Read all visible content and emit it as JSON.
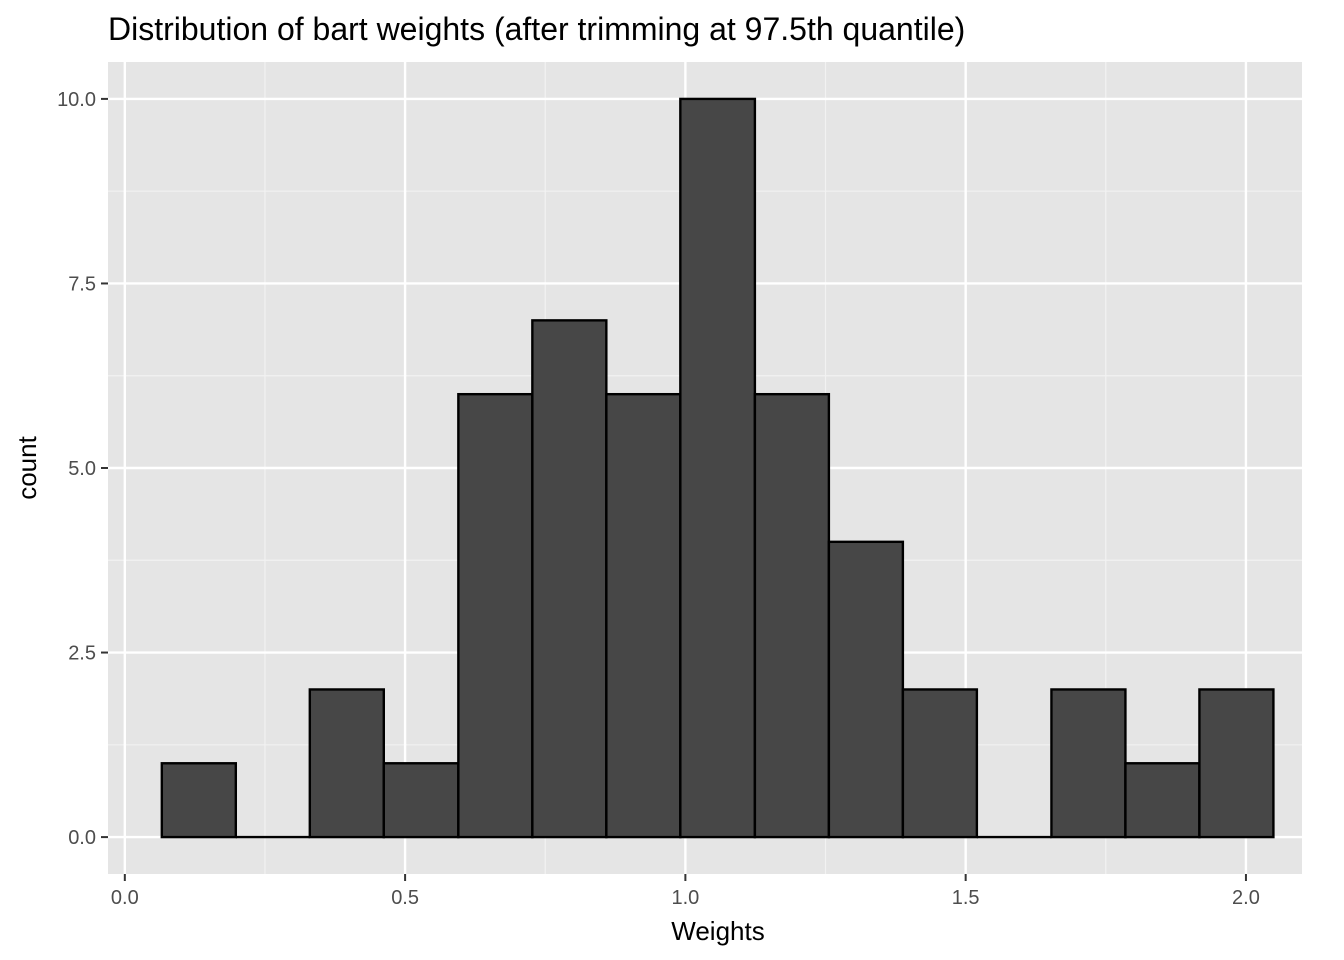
{
  "chart_data": {
    "type": "bar",
    "title": "Distribution of bart weights (after trimming at 97.5th quantile)",
    "xlabel": "Weights",
    "ylabel": "count",
    "xlim": [
      -0.03,
      2.1
    ],
    "ylim": [
      -0.5,
      10.5
    ],
    "x_major_ticks": [
      0.0,
      0.5,
      1.0,
      1.5,
      2.0
    ],
    "x_tick_labels": [
      "0.0",
      "0.5",
      "1.0",
      "1.5",
      "2.0"
    ],
    "y_major_ticks": [
      0.0,
      2.5,
      5.0,
      7.5,
      10.0
    ],
    "y_tick_labels": [
      "0.0",
      "2.5",
      "5.0",
      "7.5",
      "10.0"
    ],
    "grid": true,
    "bar_fill": "#474747",
    "bar_outline": "#000000",
    "panel_background": "#e5e5e5",
    "bins": [
      {
        "xmin": 0.066,
        "xmax": 0.198,
        "count": 1
      },
      {
        "xmin": 0.198,
        "xmax": 0.33,
        "count": 0
      },
      {
        "xmin": 0.33,
        "xmax": 0.462,
        "count": 2
      },
      {
        "xmin": 0.462,
        "xmax": 0.595,
        "count": 1
      },
      {
        "xmin": 0.595,
        "xmax": 0.727,
        "count": 6
      },
      {
        "xmin": 0.727,
        "xmax": 0.859,
        "count": 7
      },
      {
        "xmin": 0.859,
        "xmax": 0.991,
        "count": 6
      },
      {
        "xmin": 0.991,
        "xmax": 1.124,
        "count": 10
      },
      {
        "xmin": 1.124,
        "xmax": 1.256,
        "count": 6
      },
      {
        "xmin": 1.256,
        "xmax": 1.388,
        "count": 4
      },
      {
        "xmin": 1.388,
        "xmax": 1.52,
        "count": 2
      },
      {
        "xmin": 1.52,
        "xmax": 1.653,
        "count": 0
      },
      {
        "xmin": 1.653,
        "xmax": 1.785,
        "count": 2
      },
      {
        "xmin": 1.785,
        "xmax": 1.917,
        "count": 1
      },
      {
        "xmin": 1.917,
        "xmax": 2.049,
        "count": 2
      }
    ]
  }
}
